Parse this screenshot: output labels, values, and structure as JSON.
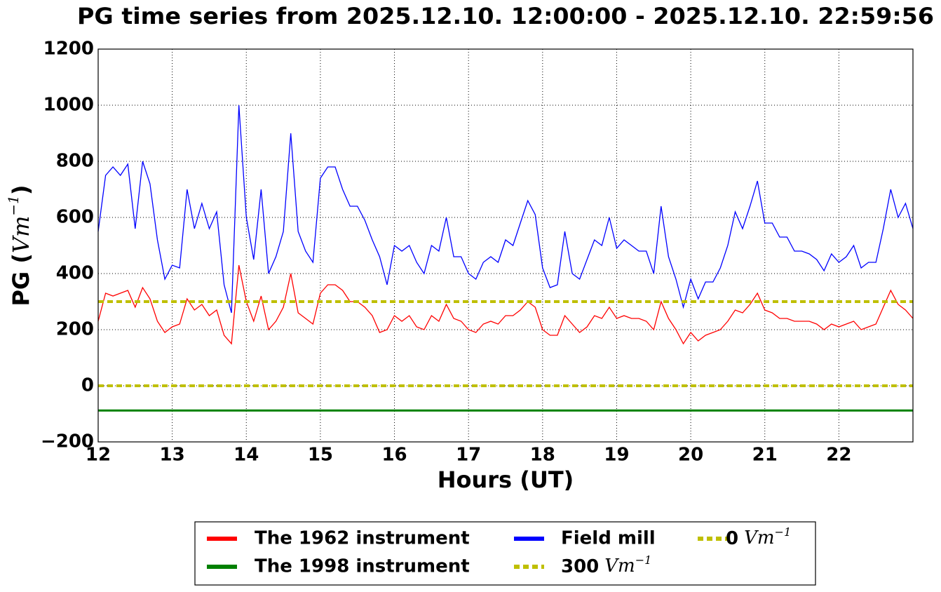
{
  "chart_data": {
    "type": "line",
    "title": "PG time series from 2025.12.10. 12:00:00 - 2025.12.10. 22:59:56",
    "ylabel": [
      "PG (",
      "Vm",
      "−1",
      ")"
    ],
    "xlabel": "Hours (UT)",
    "xlim": [
      12,
      23
    ],
    "xticks": [
      12,
      13,
      14,
      15,
      16,
      17,
      18,
      19,
      20,
      21,
      22
    ],
    "ylim": [
      -200,
      1200
    ],
    "yticks": [
      {
        "value": -200,
        "label": "−200"
      },
      0,
      200,
      400,
      600,
      800,
      1000,
      1200
    ],
    "grid": true,
    "legend": "bottom",
    "x": [
      12.0,
      12.1,
      12.2,
      12.3,
      12.4,
      12.5,
      12.6,
      12.7,
      12.8,
      12.9,
      13.0,
      13.1,
      13.2,
      13.3,
      13.4,
      13.5,
      13.6,
      13.7,
      13.8,
      13.9,
      14.0,
      14.1,
      14.2,
      14.3,
      14.4,
      14.5,
      14.6,
      14.7,
      14.8,
      14.9,
      15.0,
      15.1,
      15.2,
      15.3,
      15.4,
      15.5,
      15.6,
      15.7,
      15.8,
      15.9,
      16.0,
      16.1,
      16.2,
      16.3,
      16.4,
      16.5,
      16.6,
      16.7,
      16.8,
      16.9,
      17.0,
      17.1,
      17.2,
      17.3,
      17.4,
      17.5,
      17.6,
      17.7,
      17.8,
      17.9,
      18.0,
      18.1,
      18.2,
      18.3,
      18.4,
      18.5,
      18.6,
      18.7,
      18.8,
      18.9,
      19.0,
      19.1,
      19.2,
      19.3,
      19.4,
      19.5,
      19.6,
      19.7,
      19.8,
      19.9,
      20.0,
      20.1,
      20.2,
      20.3,
      20.4,
      20.5,
      20.6,
      20.7,
      20.8,
      20.9,
      21.0,
      21.1,
      21.2,
      21.3,
      21.4,
      21.5,
      21.6,
      21.7,
      21.8,
      21.9,
      22.0,
      22.1,
      22.2,
      22.3,
      22.4,
      22.5,
      22.6,
      22.7,
      22.8,
      22.9,
      23.0
    ],
    "series": [
      {
        "name": "The 1962 instrument",
        "color": "#ff0000",
        "values": [
          230,
          330,
          320,
          330,
          340,
          280,
          350,
          310,
          230,
          190,
          210,
          220,
          310,
          270,
          290,
          250,
          270,
          180,
          150,
          430,
          300,
          230,
          320,
          200,
          230,
          280,
          400,
          260,
          240,
          220,
          330,
          360,
          360,
          340,
          300,
          300,
          280,
          250,
          190,
          200,
          250,
          230,
          250,
          210,
          200,
          250,
          230,
          290,
          240,
          230,
          200,
          190,
          220,
          230,
          220,
          250,
          250,
          270,
          300,
          280,
          200,
          180,
          180,
          250,
          220,
          190,
          210,
          250,
          240,
          280,
          240,
          250,
          240,
          240,
          230,
          200,
          300,
          240,
          200,
          150,
          190,
          160,
          180,
          190,
          200,
          230,
          270,
          260,
          290,
          330,
          270,
          260,
          240,
          240,
          230,
          230,
          230,
          220,
          200,
          220,
          210,
          220,
          230,
          200,
          210,
          220,
          280,
          340,
          290,
          270,
          240
        ]
      },
      {
        "name": "The 1998 instrument",
        "color": "#008000",
        "x": [
          12,
          23
        ],
        "values": [
          -88,
          -88
        ]
      },
      {
        "name": "Field mill",
        "color": "#0000ff",
        "values": [
          550,
          750,
          780,
          750,
          790,
          560,
          800,
          720,
          520,
          380,
          430,
          420,
          700,
          560,
          650,
          560,
          620,
          360,
          260,
          1000,
          600,
          450,
          700,
          400,
          460,
          550,
          900,
          550,
          480,
          440,
          740,
          780,
          780,
          700,
          640,
          640,
          590,
          520,
          460,
          360,
          500,
          480,
          500,
          440,
          400,
          500,
          480,
          600,
          460,
          460,
          400,
          380,
          440,
          460,
          440,
          520,
          500,
          580,
          660,
          610,
          420,
          350,
          360,
          550,
          400,
          380,
          450,
          520,
          500,
          600,
          490,
          520,
          500,
          480,
          480,
          400,
          640,
          460,
          380,
          280,
          380,
          310,
          370,
          370,
          420,
          500,
          620,
          560,
          640,
          730,
          580,
          580,
          530,
          530,
          480,
          480,
          470,
          450,
          410,
          470,
          440,
          460,
          500,
          420,
          440,
          440,
          560,
          700,
          600,
          650,
          560
        ]
      }
    ],
    "reference_lines": [
      {
        "value": 300,
        "unit": "Vm",
        "unit_exponent": "−1",
        "color": "#bfbf00"
      },
      {
        "value": 0,
        "unit": "Vm",
        "unit_exponent": "−1",
        "color": "#bfbf00"
      }
    ]
  }
}
